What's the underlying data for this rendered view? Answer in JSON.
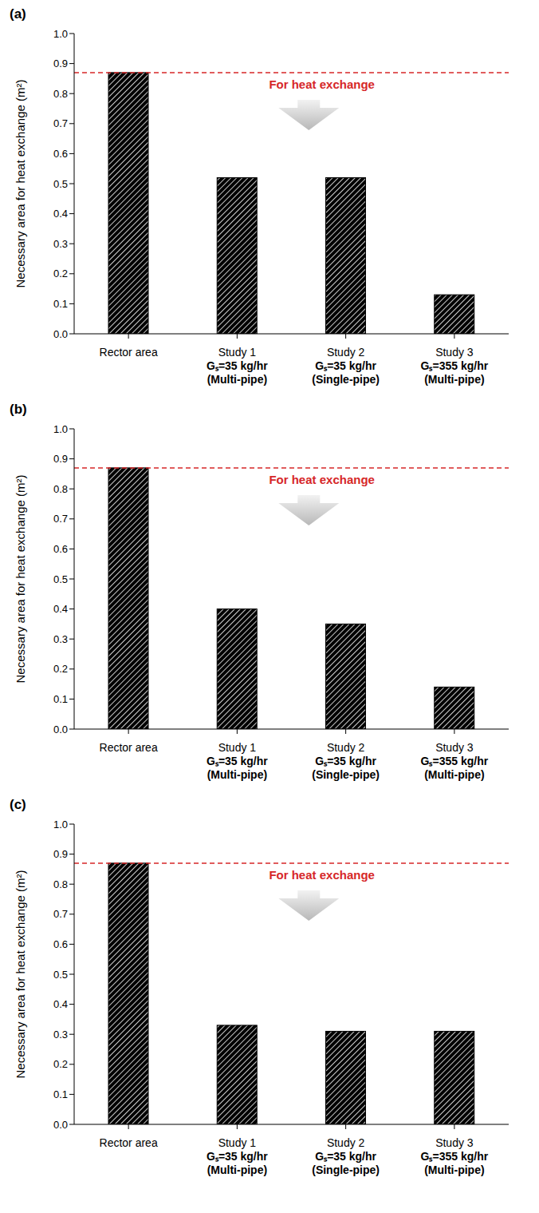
{
  "chart_data": [
    {
      "type": "bar",
      "title": "(a)",
      "y_label": "Necessary area for heat exchange (m²)",
      "categories": [
        "Rector area",
        "Study 1\nGₛ=35 kg/hr\n(Multi-pipe)",
        "Study 2\nGₛ=35 kg/hr\n(Single-pipe)",
        "Study 3\nGₛ=355 kg/hr\n(Multi-pipe)"
      ],
      "values": [
        0.87,
        0.52,
        0.52,
        0.13
      ],
      "color": "#000000",
      "ylim": [
        0,
        1
      ],
      "yticks": [
        {
          "value": 0,
          "label": "0.0"
        },
        0.1,
        0.2,
        0.3,
        0.4,
        0.5,
        0.6,
        0.7,
        0.8,
        0.9,
        {
          "value": 1,
          "label": "1.0"
        }
      ],
      "grid": false,
      "annotations": [
        {
          "text": "For heat exchange",
          "y": 0.87,
          "color": "#d62728",
          "line_style": "dashed"
        }
      ]
    },
    {
      "type": "bar",
      "title": "(b)",
      "y_label": "Necessary area for heat exchange (m²)",
      "categories": [
        "Rector area",
        "Study 1\nGₛ=35 kg/hr\n(Multi-pipe)",
        "Study 2\nGₛ=35 kg/hr\n(Single-pipe)",
        "Study 3\nGₛ=355 kg/hr\n(Multi-pipe)"
      ],
      "values": [
        0.87,
        0.4,
        0.35,
        0.14
      ],
      "color": "#000000",
      "ylim": [
        0,
        1
      ],
      "yticks": [
        {
          "value": 0,
          "label": "0.0"
        },
        0.1,
        0.2,
        0.3,
        0.4,
        0.5,
        0.6,
        0.7,
        0.8,
        0.9,
        {
          "value": 1,
          "label": "1.0"
        }
      ],
      "grid": false,
      "annotations": [
        {
          "text": "For heat exchange",
          "y": 0.87,
          "color": "#d62728",
          "line_style": "dashed"
        }
      ]
    },
    {
      "type": "bar",
      "title": "(c)",
      "y_label": "Necessary area for heat exchange (m²)",
      "categories": [
        "Rector area",
        "Study 1\nGₛ=35 kg/hr\n(Multi-pipe)",
        "Study 2\nGₛ=35 kg/hr\n(Single-pipe)",
        "Study 3\nGₛ=355 kg/hr\n(Multi-pipe)"
      ],
      "values": [
        0.87,
        0.33,
        0.31,
        0.31
      ],
      "color": "#000000",
      "ylim": [
        0,
        1
      ],
      "yticks": [
        {
          "value": 0,
          "label": "0.0"
        },
        0.1,
        0.2,
        0.3,
        0.4,
        0.5,
        0.6,
        0.7,
        0.8,
        0.9,
        {
          "value": 1,
          "label": "1.0"
        }
      ],
      "grid": false,
      "annotations": [
        {
          "text": "For heat exchange",
          "y": 0.87,
          "color": "#d62728",
          "line_style": "dashed"
        }
      ]
    }
  ]
}
